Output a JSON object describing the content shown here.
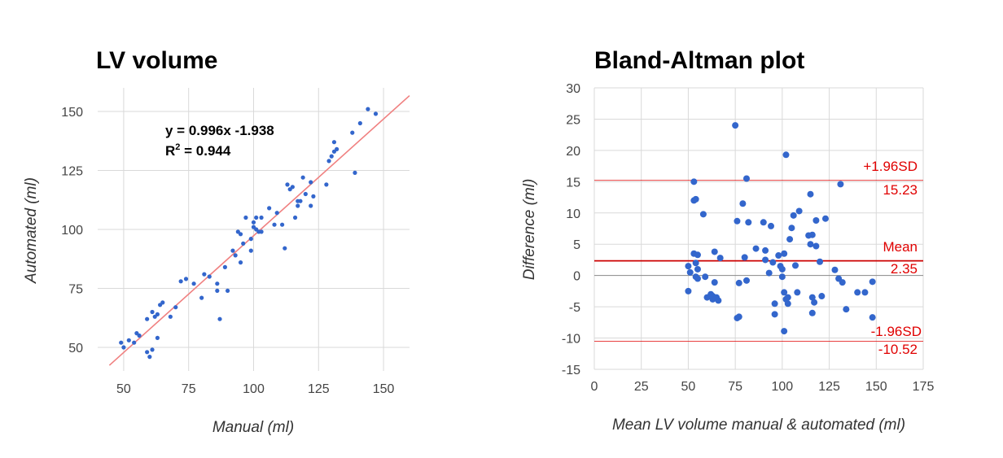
{
  "colors": {
    "point": "#3366cc",
    "trendline": "#f08080",
    "reference": "#e00000",
    "mean_line": "#cc0000",
    "grid": "#d9d9d9",
    "zero_line": "#888888"
  },
  "chart_data": [
    {
      "type": "scatter",
      "title": "LV volume",
      "xlabel": "Manual (ml)",
      "ylabel": "Automated (ml)",
      "xlim": [
        40,
        160
      ],
      "ylim": [
        40,
        160
      ],
      "xticks": [
        "50",
        "75",
        "100",
        "125",
        "150"
      ],
      "yticks": [
        "50",
        "75",
        "100",
        "125",
        "150"
      ],
      "grid": true,
      "equation_line1": "y = 0.996x -1.938",
      "r2_label": "R",
      "r2_sup": "2",
      "r2_value": " = 0.944",
      "trendline": {
        "slope": 0.996,
        "intercept": -1.938
      },
      "points": [
        [
          49,
          52
        ],
        [
          50,
          50
        ],
        [
          52,
          53
        ],
        [
          54,
          52
        ],
        [
          55,
          56
        ],
        [
          56,
          55
        ],
        [
          59,
          48
        ],
        [
          60,
          46
        ],
        [
          61,
          49
        ],
        [
          59,
          62
        ],
        [
          61,
          65
        ],
        [
          62,
          63
        ],
        [
          63,
          64
        ],
        [
          64,
          68
        ],
        [
          65,
          69
        ],
        [
          63,
          54
        ],
        [
          68,
          63
        ],
        [
          70,
          67
        ],
        [
          72,
          78
        ],
        [
          74,
          79
        ],
        [
          77,
          77
        ],
        [
          80,
          71
        ],
        [
          81,
          81
        ],
        [
          83,
          80
        ],
        [
          86,
          74
        ],
        [
          86,
          77
        ],
        [
          87,
          62
        ],
        [
          89,
          84
        ],
        [
          90,
          74
        ],
        [
          92,
          91
        ],
        [
          93,
          89
        ],
        [
          94,
          99
        ],
        [
          95,
          98
        ],
        [
          95,
          86
        ],
        [
          96,
          94
        ],
        [
          97,
          105
        ],
        [
          99,
          91
        ],
        [
          99,
          96
        ],
        [
          100,
          101
        ],
        [
          100,
          103
        ],
        [
          101,
          105
        ],
        [
          101,
          100
        ],
        [
          102,
          99
        ],
        [
          103,
          105
        ],
        [
          103,
          99
        ],
        [
          106,
          109
        ],
        [
          108,
          102
        ],
        [
          109,
          107
        ],
        [
          111,
          102
        ],
        [
          112,
          92
        ],
        [
          113,
          119
        ],
        [
          114,
          117
        ],
        [
          115,
          118
        ],
        [
          116,
          105
        ],
        [
          117,
          112
        ],
        [
          117,
          110
        ],
        [
          118,
          112
        ],
        [
          119,
          122
        ],
        [
          120,
          115
        ],
        [
          122,
          110
        ],
        [
          122,
          120
        ],
        [
          123,
          114
        ],
        [
          128,
          119
        ],
        [
          129,
          129
        ],
        [
          130,
          131
        ],
        [
          131,
          133
        ],
        [
          131,
          137
        ],
        [
          132,
          134
        ],
        [
          138,
          141
        ],
        [
          139,
          124
        ],
        [
          141,
          145
        ],
        [
          144,
          151
        ],
        [
          147,
          149
        ]
      ]
    },
    {
      "type": "scatter",
      "title": "Bland-Altman plot",
      "xlabel": "Mean LV volume manual & automated (ml)",
      "ylabel": "Difference (ml)",
      "xlim": [
        0,
        175
      ],
      "ylim": [
        -15,
        30
      ],
      "xticks": [
        "0",
        "25",
        "50",
        "75",
        "100",
        "125",
        "150",
        "175"
      ],
      "yticks": [
        "30",
        "25",
        "20",
        "15",
        "10",
        "5",
        "0",
        "-5",
        "-10",
        "-15"
      ],
      "grid": true,
      "reference_lines": [
        {
          "label": "+1.96SD",
          "value_label": "15.23",
          "value": 15.23
        },
        {
          "label": "Mean",
          "value_label": "2.35",
          "value": 2.35
        },
        {
          "label": "-1.96SD",
          "value_label": "-10.52",
          "value": -10.52
        }
      ],
      "points": [
        [
          50,
          1.5
        ],
        [
          50,
          -2.5
        ],
        [
          51,
          0.5
        ],
        [
          53,
          3.5
        ],
        [
          53,
          15
        ],
        [
          53,
          12
        ],
        [
          54,
          12.2
        ],
        [
          54,
          2
        ],
        [
          54,
          -0.2
        ],
        [
          55,
          3.3
        ],
        [
          55,
          1
        ],
        [
          55,
          -0.5
        ],
        [
          58,
          9.8
        ],
        [
          59,
          -0.2
        ],
        [
          60,
          -3.5
        ],
        [
          62,
          -3
        ],
        [
          63,
          -3.8
        ],
        [
          63,
          -3.3
        ],
        [
          64,
          3.8
        ],
        [
          64,
          -1.1
        ],
        [
          65,
          -3.5
        ],
        [
          66,
          -4
        ],
        [
          67,
          2.8
        ],
        [
          75,
          24
        ],
        [
          76,
          8.7
        ],
        [
          76,
          -6.8
        ],
        [
          77,
          -6.6
        ],
        [
          77,
          -1.2
        ],
        [
          79,
          11.5
        ],
        [
          80,
          2.9
        ],
        [
          81,
          15.5
        ],
        [
          81,
          -0.8
        ],
        [
          82,
          8.5
        ],
        [
          86,
          4.3
        ],
        [
          90,
          8.5
        ],
        [
          91,
          4
        ],
        [
          91,
          2.5
        ],
        [
          93,
          0.4
        ],
        [
          94,
          7.9
        ],
        [
          95,
          2.1
        ],
        [
          96,
          -4.5
        ],
        [
          96,
          -6.2
        ],
        [
          98,
          3.2
        ],
        [
          99,
          1.5
        ],
        [
          100,
          -0.2
        ],
        [
          100,
          1
        ],
        [
          101,
          3.5
        ],
        [
          101,
          -2.7
        ],
        [
          101,
          -8.9
        ],
        [
          102,
          19.3
        ],
        [
          102,
          -3.8
        ],
        [
          103,
          -4.5
        ],
        [
          103,
          -3.5
        ],
        [
          104,
          5.8
        ],
        [
          105,
          7.6
        ],
        [
          106,
          9.6
        ],
        [
          107,
          1.6
        ],
        [
          108,
          -2.7
        ],
        [
          109,
          10.3
        ],
        [
          114,
          6.4
        ],
        [
          115,
          5
        ],
        [
          115,
          13
        ],
        [
          116,
          6.5
        ],
        [
          116,
          -3.5
        ],
        [
          116,
          -6
        ],
        [
          117,
          -4.3
        ],
        [
          118,
          4.7
        ],
        [
          118,
          8.8
        ],
        [
          120,
          2.2
        ],
        [
          121,
          -3.3
        ],
        [
          123,
          9.1
        ],
        [
          128,
          0.9
        ],
        [
          130,
          -0.5
        ],
        [
          131,
          14.6
        ],
        [
          132,
          -1.1
        ],
        [
          134,
          -5.4
        ],
        [
          140,
          -2.7
        ],
        [
          144,
          -2.7
        ],
        [
          148,
          -6.7
        ],
        [
          148,
          -1
        ]
      ]
    }
  ]
}
